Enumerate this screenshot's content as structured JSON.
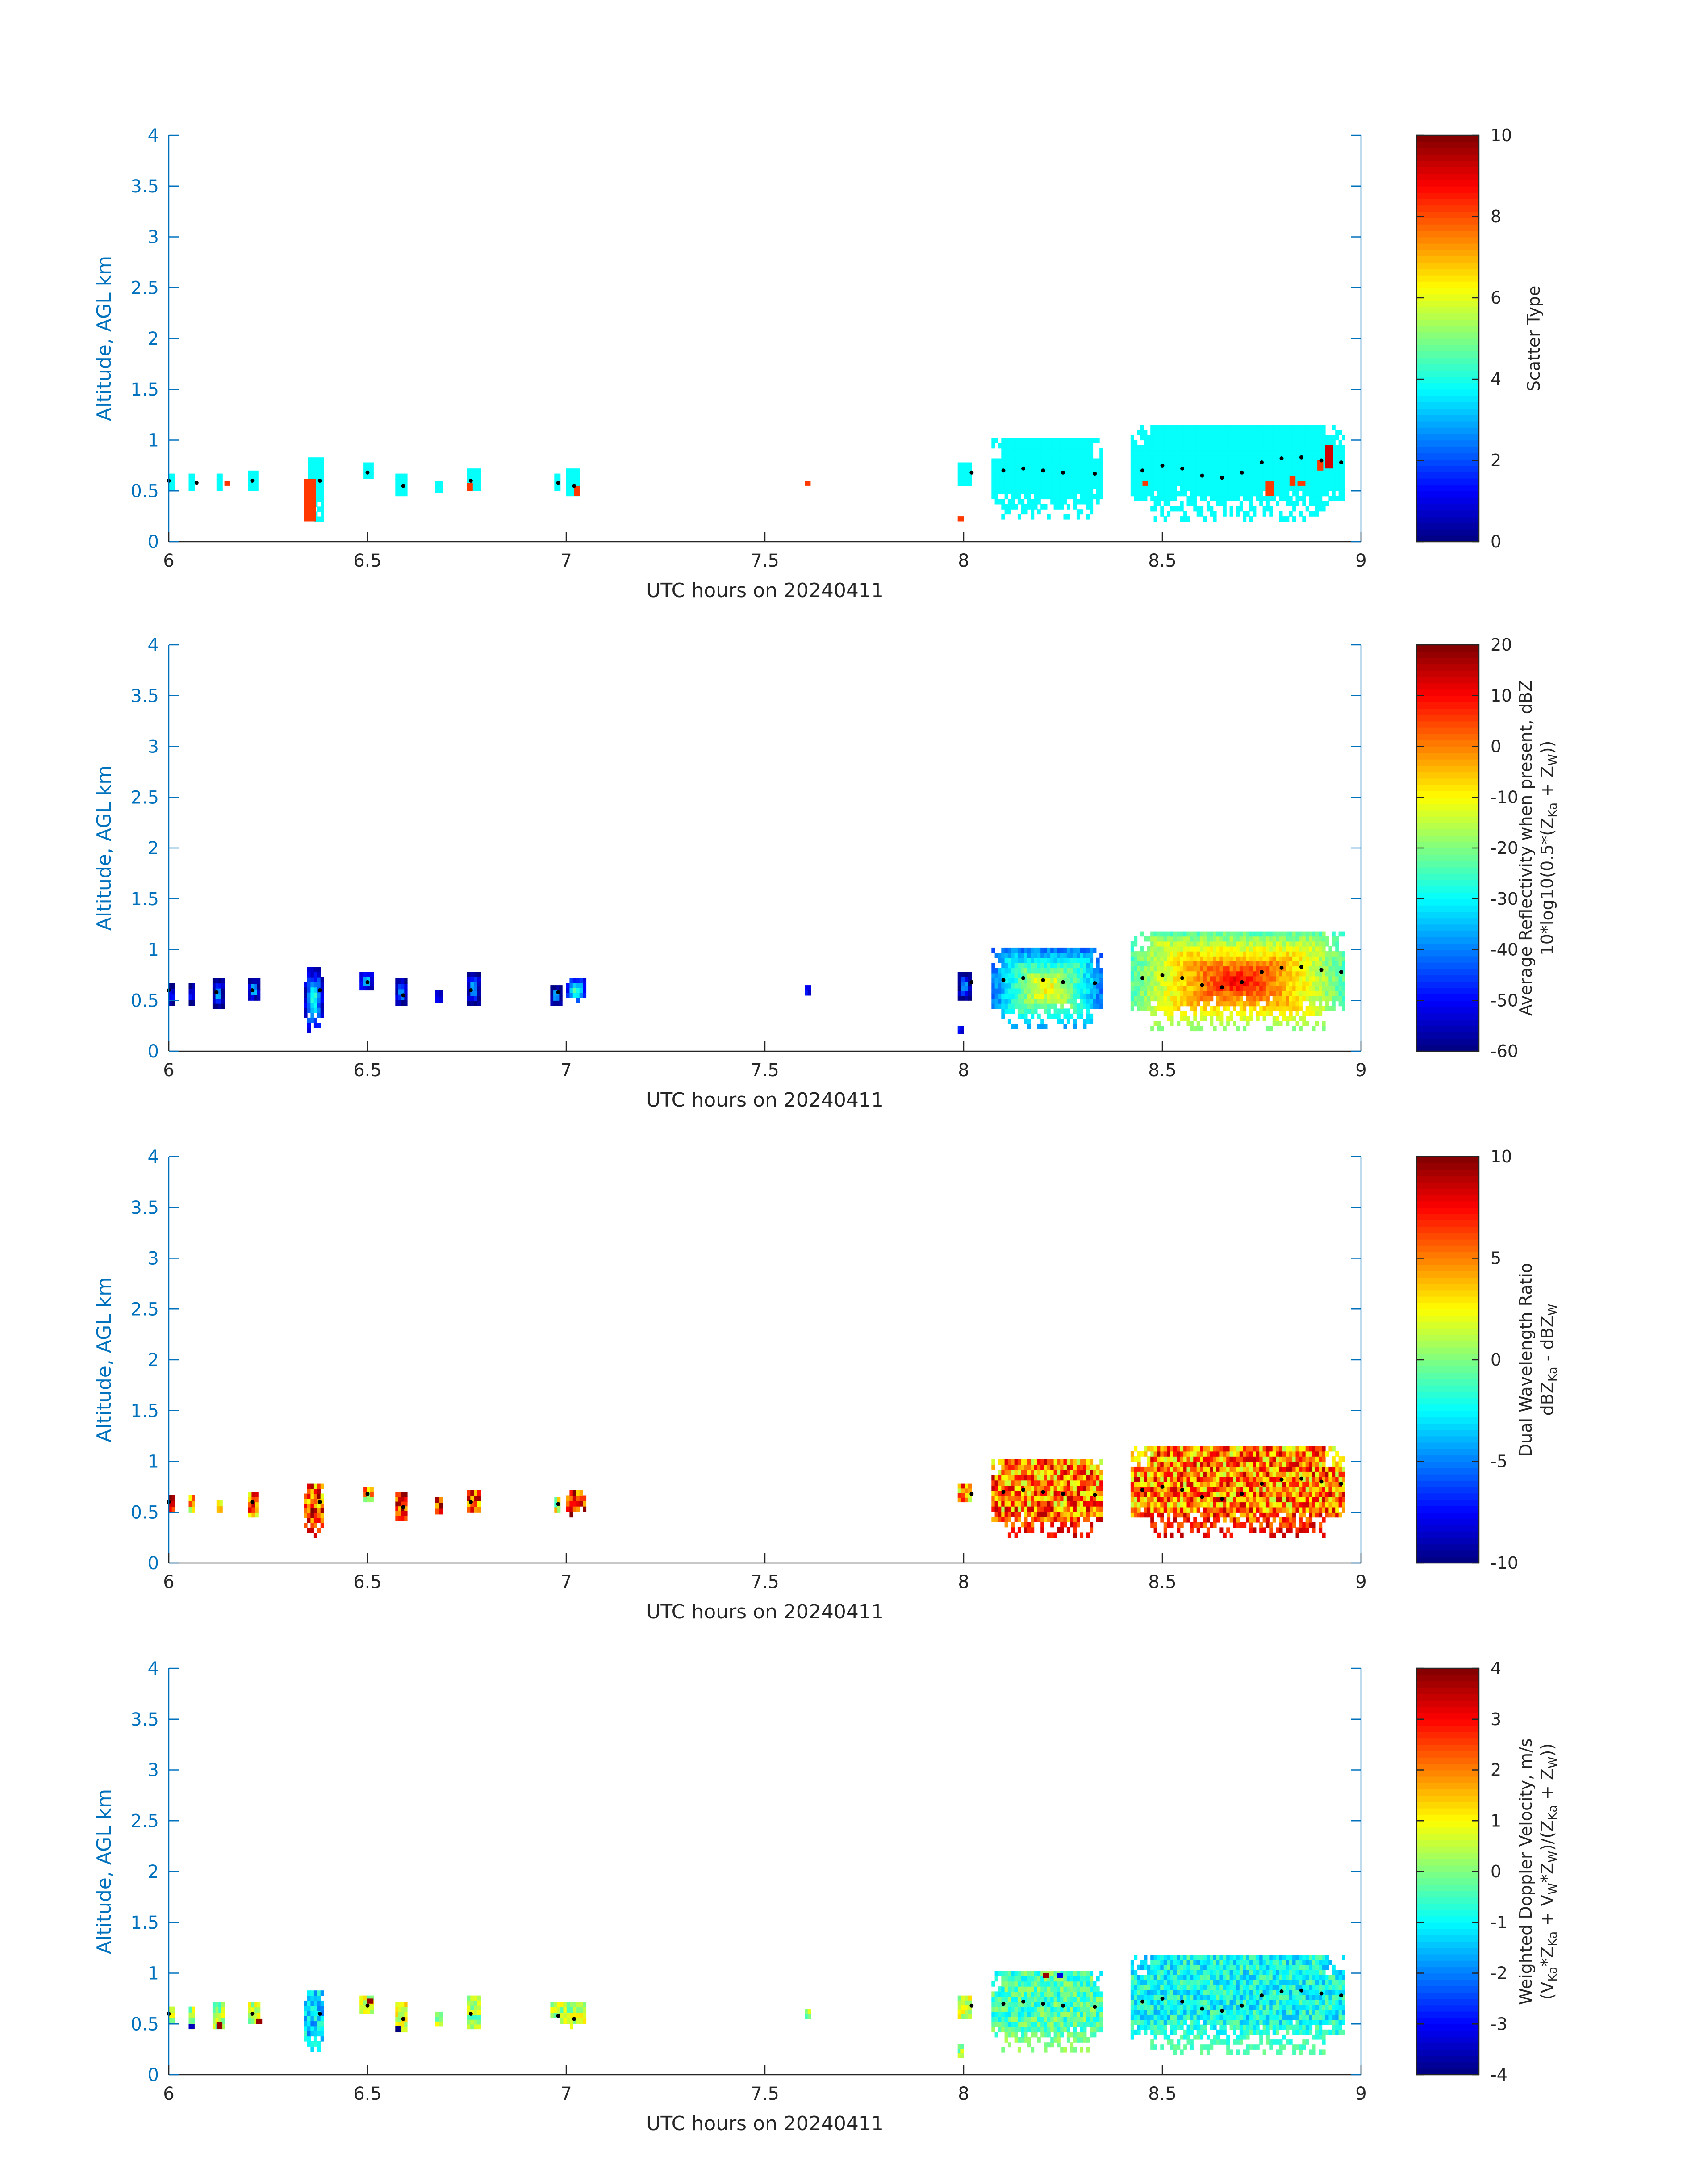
{
  "chart_data": [
    {
      "type": "heatmap",
      "panel": "scatter-type",
      "xlabel": "UTC hours on 20240411",
      "ylabel": "Altitude, AGL km",
      "xlim": [
        6,
        9
      ],
      "ylim": [
        0,
        4
      ],
      "xticks": [
        "6",
        "6.5",
        "7",
        "7.5",
        "8",
        "8.5",
        "9"
      ],
      "yticks": [
        "0",
        "0.5",
        "1",
        "1.5",
        "2",
        "2.5",
        "3",
        "3.5",
        "4"
      ],
      "colorbar": {
        "label_lines": [
          "Scatter Type"
        ],
        "range": [
          0,
          10
        ],
        "ticks": [
          "0",
          "2",
          "4",
          "6",
          "8",
          "10"
        ]
      },
      "fill_mode": "scatter",
      "clusters": [
        {
          "x0": 6.0,
          "x1": 6.015,
          "y0": 0.5,
          "y1": 0.67,
          "value": 3.8
        },
        {
          "x0": 6.05,
          "x1": 6.065,
          "y0": 0.5,
          "y1": 0.67,
          "value": 3.8
        },
        {
          "x0": 6.12,
          "x1": 6.135,
          "y0": 0.5,
          "y1": 0.67,
          "value": 3.8
        },
        {
          "x0": 6.2,
          "x1": 6.225,
          "y0": 0.5,
          "y1": 0.7,
          "value": 3.8
        },
        {
          "x0": 6.35,
          "x1": 6.39,
          "y0": 0.2,
          "y1": 0.83,
          "value": 3.8
        },
        {
          "x0": 6.49,
          "x1": 6.515,
          "y0": 0.62,
          "y1": 0.78,
          "value": 3.8
        },
        {
          "x0": 6.57,
          "x1": 6.6,
          "y0": 0.45,
          "y1": 0.67,
          "value": 3.8
        },
        {
          "x0": 6.67,
          "x1": 6.69,
          "y0": 0.48,
          "y1": 0.6,
          "value": 3.8
        },
        {
          "x0": 6.75,
          "x1": 6.785,
          "y0": 0.5,
          "y1": 0.72,
          "value": 3.8
        },
        {
          "x0": 6.97,
          "x1": 6.985,
          "y0": 0.5,
          "y1": 0.67,
          "value": 3.8
        },
        {
          "x0": 7.0,
          "x1": 7.035,
          "y0": 0.45,
          "y1": 0.72,
          "value": 3.8
        },
        {
          "x0": 7.985,
          "x1": 8.02,
          "y0": 0.55,
          "y1": 0.78,
          "value": 3.8
        },
        {
          "x0": 8.07,
          "x1": 8.35,
          "y0": 0.22,
          "y1": 1.02,
          "value": 3.8
        },
        {
          "x0": 8.42,
          "x1": 8.96,
          "y0": 0.2,
          "y1": 1.15,
          "value": 3.8
        }
      ],
      "spots": [
        {
          "x0": 6.34,
          "x1": 6.37,
          "y0": 0.2,
          "y1": 0.62,
          "value": 8.2
        },
        {
          "x0": 6.14,
          "x1": 6.155,
          "y0": 0.55,
          "y1": 0.6,
          "value": 8.2
        },
        {
          "x0": 6.75,
          "x1": 6.765,
          "y0": 0.5,
          "y1": 0.58,
          "value": 8.2
        },
        {
          "x0": 7.02,
          "x1": 7.035,
          "y0": 0.45,
          "y1": 0.55,
          "value": 8.2
        },
        {
          "x0": 7.6,
          "x1": 7.615,
          "y0": 0.55,
          "y1": 0.6,
          "value": 8.2
        },
        {
          "x0": 7.985,
          "x1": 8.0,
          "y0": 0.2,
          "y1": 0.25,
          "value": 8.2
        },
        {
          "x0": 8.45,
          "x1": 8.465,
          "y0": 0.55,
          "y1": 0.6,
          "value": 8.2
        },
        {
          "x0": 8.76,
          "x1": 8.78,
          "y0": 0.45,
          "y1": 0.6,
          "value": 8.2
        },
        {
          "x0": 8.82,
          "x1": 8.835,
          "y0": 0.55,
          "y1": 0.65,
          "value": 8.2
        },
        {
          "x0": 8.84,
          "x1": 8.86,
          "y0": 0.55,
          "y1": 0.6,
          "value": 8.2
        },
        {
          "x0": 8.89,
          "x1": 8.905,
          "y0": 0.7,
          "y1": 0.8,
          "value": 8.2
        },
        {
          "x0": 8.91,
          "x1": 8.93,
          "y0": 0.72,
          "y1": 0.95,
          "value": 9.2
        }
      ],
      "trace": [
        [
          6.0,
          0.6
        ],
        [
          6.07,
          0.58
        ],
        [
          6.21,
          0.6
        ],
        [
          6.38,
          0.6
        ],
        [
          6.5,
          0.68
        ],
        [
          6.59,
          0.55
        ],
        [
          6.76,
          0.6
        ],
        [
          6.98,
          0.58
        ],
        [
          7.02,
          0.55
        ],
        [
          8.02,
          0.68
        ],
        [
          8.1,
          0.7
        ],
        [
          8.15,
          0.72
        ],
        [
          8.2,
          0.7
        ],
        [
          8.25,
          0.68
        ],
        [
          8.33,
          0.67
        ],
        [
          8.45,
          0.7
        ],
        [
          8.5,
          0.75
        ],
        [
          8.55,
          0.72
        ],
        [
          8.6,
          0.65
        ],
        [
          8.65,
          0.63
        ],
        [
          8.7,
          0.68
        ],
        [
          8.75,
          0.78
        ],
        [
          8.8,
          0.82
        ],
        [
          8.85,
          0.83
        ],
        [
          8.9,
          0.8
        ],
        [
          8.95,
          0.78
        ]
      ]
    },
    {
      "type": "heatmap",
      "panel": "average-reflectivity",
      "xlabel": "UTC hours on 20240411",
      "ylabel": "Altitude, AGL km",
      "xlim": [
        6,
        9
      ],
      "ylim": [
        0,
        4
      ],
      "xticks": [
        "6",
        "6.5",
        "7",
        "7.5",
        "8",
        "8.5",
        "9"
      ],
      "yticks": [
        "0",
        "0.5",
        "1",
        "1.5",
        "2",
        "2.5",
        "3",
        "3.5",
        "4"
      ],
      "colorbar": {
        "label_lines": [
          "Average Reflectivity when present, dBZ",
          "10*log10(0.5*(Z",
          "Ka",
          " + Z",
          "W",
          "))"
        ],
        "range": [
          -60,
          20
        ],
        "ticks": [
          "-60",
          "-50",
          "-40",
          "-30",
          "-20",
          "-10",
          "0",
          "10",
          "20"
        ]
      },
      "fill_mode": "reflectivity",
      "clusters": [
        {
          "x0": 6.0,
          "x1": 6.015,
          "y0": 0.45,
          "y1": 0.67,
          "value": -55
        },
        {
          "x0": 6.05,
          "x1": 6.065,
          "y0": 0.45,
          "y1": 0.67,
          "value": -55
        },
        {
          "x0": 6.11,
          "x1": 6.14,
          "y0": 0.42,
          "y1": 0.72,
          "value": -52
        },
        {
          "x0": 6.2,
          "x1": 6.23,
          "y0": 0.5,
          "y1": 0.72,
          "value": -50
        },
        {
          "x0": 6.34,
          "x1": 6.39,
          "y0": 0.18,
          "y1": 0.83,
          "value": -45
        },
        {
          "x0": 6.48,
          "x1": 6.515,
          "y0": 0.6,
          "y1": 0.78,
          "value": -48
        },
        {
          "x0": 6.57,
          "x1": 6.6,
          "y0": 0.45,
          "y1": 0.72,
          "value": -50
        },
        {
          "x0": 6.67,
          "x1": 6.69,
          "y0": 0.48,
          "y1": 0.6,
          "value": -55
        },
        {
          "x0": 6.75,
          "x1": 6.785,
          "y0": 0.45,
          "y1": 0.78,
          "value": -50
        },
        {
          "x0": 6.96,
          "x1": 6.99,
          "y0": 0.45,
          "y1": 0.65,
          "value": -52
        },
        {
          "x0": 7.0,
          "x1": 7.05,
          "y0": 0.48,
          "y1": 0.72,
          "value": -40
        },
        {
          "x0": 7.6,
          "x1": 7.615,
          "y0": 0.55,
          "y1": 0.65,
          "value": -55
        },
        {
          "x0": 7.985,
          "x1": 8.02,
          "y0": 0.5,
          "y1": 0.78,
          "value": -52
        },
        {
          "x0": 7.985,
          "x1": 8.0,
          "y0": 0.17,
          "y1": 0.25,
          "value": -55
        },
        {
          "x0": 8.07,
          "x1": 8.35,
          "y0": 0.22,
          "y1": 1.02,
          "value": -28
        },
        {
          "x0": 8.42,
          "x1": 8.96,
          "y0": 0.2,
          "y1": 1.18,
          "value": -10
        }
      ],
      "spots": [],
      "trace": [
        [
          6.0,
          0.6
        ],
        [
          6.12,
          0.58
        ],
        [
          6.21,
          0.6
        ],
        [
          6.38,
          0.6
        ],
        [
          6.5,
          0.68
        ],
        [
          6.59,
          0.55
        ],
        [
          6.76,
          0.6
        ],
        [
          6.98,
          0.58
        ],
        [
          8.02,
          0.68
        ],
        [
          8.1,
          0.7
        ],
        [
          8.15,
          0.72
        ],
        [
          8.2,
          0.7
        ],
        [
          8.25,
          0.68
        ],
        [
          8.33,
          0.67
        ],
        [
          8.45,
          0.72
        ],
        [
          8.5,
          0.75
        ],
        [
          8.55,
          0.72
        ],
        [
          8.6,
          0.65
        ],
        [
          8.65,
          0.63
        ],
        [
          8.7,
          0.68
        ],
        [
          8.75,
          0.78
        ],
        [
          8.8,
          0.82
        ],
        [
          8.85,
          0.83
        ],
        [
          8.9,
          0.8
        ],
        [
          8.95,
          0.78
        ]
      ]
    },
    {
      "type": "heatmap",
      "panel": "dual-wavelength-ratio",
      "xlabel": "UTC hours on 20240411",
      "ylabel": "Altitude, AGL km",
      "xlim": [
        6,
        9
      ],
      "ylim": [
        0,
        4
      ],
      "xticks": [
        "6",
        "6.5",
        "7",
        "7.5",
        "8",
        "8.5",
        "9"
      ],
      "yticks": [
        "0",
        "0.5",
        "1",
        "1.5",
        "2",
        "2.5",
        "3",
        "3.5",
        "4"
      ],
      "colorbar": {
        "label_lines": [
          "Dual Wavelength Ratio",
          "dBZ",
          "Ka",
          " - dBZ",
          "W"
        ],
        "range": [
          -10,
          10
        ],
        "ticks": [
          "-10",
          "-5",
          "0",
          "5",
          "10"
        ]
      },
      "fill_mode": "dwr",
      "clusters": [
        {
          "x0": 6.0,
          "x1": 6.015,
          "y0": 0.5,
          "y1": 0.67,
          "value": 7
        },
        {
          "x0": 6.05,
          "x1": 6.065,
          "y0": 0.5,
          "y1": 0.67,
          "value": 3
        },
        {
          "x0": 6.12,
          "x1": 6.135,
          "y0": 0.5,
          "y1": 0.62,
          "value": 4
        },
        {
          "x0": 6.2,
          "x1": 6.225,
          "y0": 0.45,
          "y1": 0.7,
          "value": 5
        },
        {
          "x0": 6.34,
          "x1": 6.39,
          "y0": 0.25,
          "y1": 0.78,
          "value": 6
        },
        {
          "x0": 6.49,
          "x1": 6.515,
          "y0": 0.6,
          "y1": 0.75,
          "value": 3
        },
        {
          "x0": 6.57,
          "x1": 6.6,
          "y0": 0.42,
          "y1": 0.7,
          "value": 7
        },
        {
          "x0": 6.67,
          "x1": 6.69,
          "y0": 0.48,
          "y1": 0.65,
          "value": 7
        },
        {
          "x0": 6.75,
          "x1": 6.785,
          "y0": 0.5,
          "y1": 0.72,
          "value": 6
        },
        {
          "x0": 6.97,
          "x1": 6.985,
          "y0": 0.5,
          "y1": 0.65,
          "value": 2
        },
        {
          "x0": 7.0,
          "x1": 7.05,
          "y0": 0.45,
          "y1": 0.72,
          "value": 7
        },
        {
          "x0": 7.985,
          "x1": 8.02,
          "y0": 0.6,
          "y1": 0.78,
          "value": 5
        },
        {
          "x0": 8.07,
          "x1": 8.35,
          "y0": 0.25,
          "y1": 1.02,
          "value": 5
        },
        {
          "x0": 8.42,
          "x1": 8.96,
          "y0": 0.25,
          "y1": 1.15,
          "value": 5
        }
      ],
      "spots": [],
      "trace": [
        [
          6.0,
          0.6
        ],
        [
          6.21,
          0.6
        ],
        [
          6.38,
          0.6
        ],
        [
          6.5,
          0.68
        ],
        [
          6.59,
          0.55
        ],
        [
          6.76,
          0.6
        ],
        [
          6.98,
          0.58
        ],
        [
          8.02,
          0.68
        ],
        [
          8.1,
          0.7
        ],
        [
          8.15,
          0.72
        ],
        [
          8.2,
          0.7
        ],
        [
          8.25,
          0.68
        ],
        [
          8.33,
          0.67
        ],
        [
          8.45,
          0.72
        ],
        [
          8.5,
          0.75
        ],
        [
          8.55,
          0.72
        ],
        [
          8.6,
          0.65
        ],
        [
          8.65,
          0.63
        ],
        [
          8.7,
          0.68
        ],
        [
          8.75,
          0.78
        ],
        [
          8.8,
          0.82
        ],
        [
          8.85,
          0.83
        ],
        [
          8.9,
          0.8
        ],
        [
          8.95,
          0.78
        ]
      ]
    },
    {
      "type": "heatmap",
      "panel": "weighted-doppler-velocity",
      "xlabel": "UTC hours on 20240411",
      "ylabel": "Altitude, AGL km",
      "xlim": [
        6,
        9
      ],
      "ylim": [
        0,
        4
      ],
      "xticks": [
        "6",
        "6.5",
        "7",
        "7.5",
        "8",
        "8.5",
        "9"
      ],
      "yticks": [
        "0",
        "0.5",
        "1",
        "1.5",
        "2",
        "2.5",
        "3",
        "3.5",
        "4"
      ],
      "colorbar": {
        "label_lines": [
          "Weighted Doppler Velocity, m/s",
          "(V",
          "Ka",
          "*Z",
          "Ka",
          " + V",
          "W",
          "*Z",
          "W",
          ")/(Z",
          "Ka",
          " + Z",
          "W",
          "))"
        ],
        "range": [
          -4,
          4
        ],
        "ticks": [
          "-4",
          "-3",
          "-2",
          "-1",
          "0",
          "1",
          "2",
          "3",
          "4"
        ]
      },
      "fill_mode": "velocity",
      "clusters": [
        {
          "x0": 6.0,
          "x1": 6.015,
          "y0": 0.5,
          "y1": 0.67,
          "value": 0.5
        },
        {
          "x0": 6.05,
          "x1": 6.065,
          "y0": 0.45,
          "y1": 0.67,
          "value": 0.3
        },
        {
          "x0": 6.11,
          "x1": 6.14,
          "y0": 0.45,
          "y1": 0.72,
          "value": 0.2
        },
        {
          "x0": 6.2,
          "x1": 6.23,
          "y0": 0.5,
          "y1": 0.72,
          "value": 0.4
        },
        {
          "x0": 6.34,
          "x1": 6.39,
          "y0": 0.18,
          "y1": 0.83,
          "value": -1.3
        },
        {
          "x0": 6.48,
          "x1": 6.515,
          "y0": 0.6,
          "y1": 0.78,
          "value": 0.5
        },
        {
          "x0": 6.57,
          "x1": 6.6,
          "y0": 0.42,
          "y1": 0.72,
          "value": 0.8
        },
        {
          "x0": 6.67,
          "x1": 6.69,
          "y0": 0.48,
          "y1": 0.62,
          "value": 0.3
        },
        {
          "x0": 6.75,
          "x1": 6.785,
          "y0": 0.45,
          "y1": 0.78,
          "value": 0.2
        },
        {
          "x0": 6.96,
          "x1": 7.05,
          "y0": 0.45,
          "y1": 0.72,
          "value": 0.4
        },
        {
          "x0": 7.6,
          "x1": 7.615,
          "y0": 0.55,
          "y1": 0.65,
          "value": 0.2
        },
        {
          "x0": 7.985,
          "x1": 8.02,
          "y0": 0.55,
          "y1": 0.78,
          "value": 0.5
        },
        {
          "x0": 7.985,
          "x1": 8.0,
          "y0": 0.17,
          "y1": 0.3,
          "value": 0.2
        },
        {
          "x0": 8.07,
          "x1": 8.35,
          "y0": 0.22,
          "y1": 1.02,
          "value": -0.4
        },
        {
          "x0": 8.42,
          "x1": 8.96,
          "y0": 0.2,
          "y1": 1.18,
          "value": -0.9
        }
      ],
      "spots": [
        {
          "x0": 6.22,
          "x1": 6.235,
          "y0": 0.5,
          "y1": 0.55,
          "value": 3.8
        },
        {
          "x0": 6.5,
          "x1": 6.515,
          "y0": 0.7,
          "y1": 0.75,
          "value": 3.8
        },
        {
          "x0": 6.57,
          "x1": 6.585,
          "y0": 0.42,
          "y1": 0.48,
          "value": -4
        },
        {
          "x0": 6.12,
          "x1": 6.135,
          "y0": 0.45,
          "y1": 0.52,
          "value": 3.8
        },
        {
          "x0": 6.05,
          "x1": 6.065,
          "y0": 0.45,
          "y1": 0.5,
          "value": -3.5
        },
        {
          "x0": 8.2,
          "x1": 8.215,
          "y0": 0.95,
          "y1": 1.0,
          "value": 3.8
        },
        {
          "x0": 8.235,
          "x1": 8.25,
          "y0": 0.95,
          "y1": 1.0,
          "value": -3.2
        }
      ],
      "trace": [
        [
          6.0,
          0.6
        ],
        [
          6.21,
          0.6
        ],
        [
          6.38,
          0.6
        ],
        [
          6.5,
          0.68
        ],
        [
          6.59,
          0.55
        ],
        [
          6.76,
          0.6
        ],
        [
          6.98,
          0.58
        ],
        [
          7.02,
          0.55
        ],
        [
          8.02,
          0.68
        ],
        [
          8.1,
          0.7
        ],
        [
          8.15,
          0.72
        ],
        [
          8.2,
          0.7
        ],
        [
          8.25,
          0.68
        ],
        [
          8.33,
          0.67
        ],
        [
          8.45,
          0.72
        ],
        [
          8.5,
          0.75
        ],
        [
          8.55,
          0.72
        ],
        [
          8.6,
          0.65
        ],
        [
          8.65,
          0.63
        ],
        [
          8.7,
          0.68
        ],
        [
          8.75,
          0.78
        ],
        [
          8.8,
          0.82
        ],
        [
          8.85,
          0.83
        ],
        [
          8.9,
          0.8
        ],
        [
          8.95,
          0.78
        ]
      ]
    }
  ],
  "style": {
    "axis_color": "#0072bd",
    "tick_label_color": "#0072bd",
    "x_label_color": "#262626",
    "trace_color": "#000000",
    "colormap": "jet"
  }
}
